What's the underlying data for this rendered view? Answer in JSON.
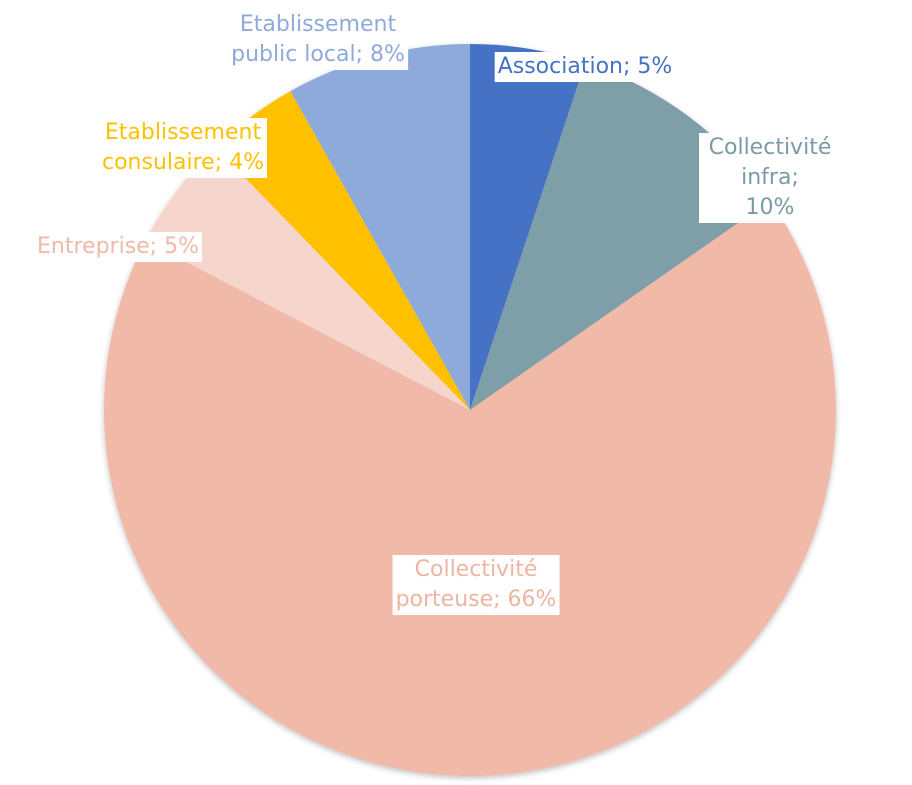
{
  "chart_data": {
    "type": "pie",
    "values": [
      5,
      10,
      66,
      5,
      4,
      8
    ],
    "value_labels": [
      "Association; 5%",
      "Collectivité infra;\n10%",
      "Collectivité\nporteuse; 66%",
      "Entreprise; 5%",
      "Etablissement\nconsulaire; 4%",
      "Etablissement\npublic local; 8%"
    ],
    "colors": [
      "#4472c4",
      "#7f9fa8",
      "#f0b9a8",
      "#f6d5cd",
      "#ffc000",
      "#8eaadb"
    ],
    "label_colors": [
      "#4472c4",
      "#7a9ba4",
      "#efb4a2",
      "#f0b9a8",
      "#ffc000",
      "#8eaadb"
    ]
  }
}
